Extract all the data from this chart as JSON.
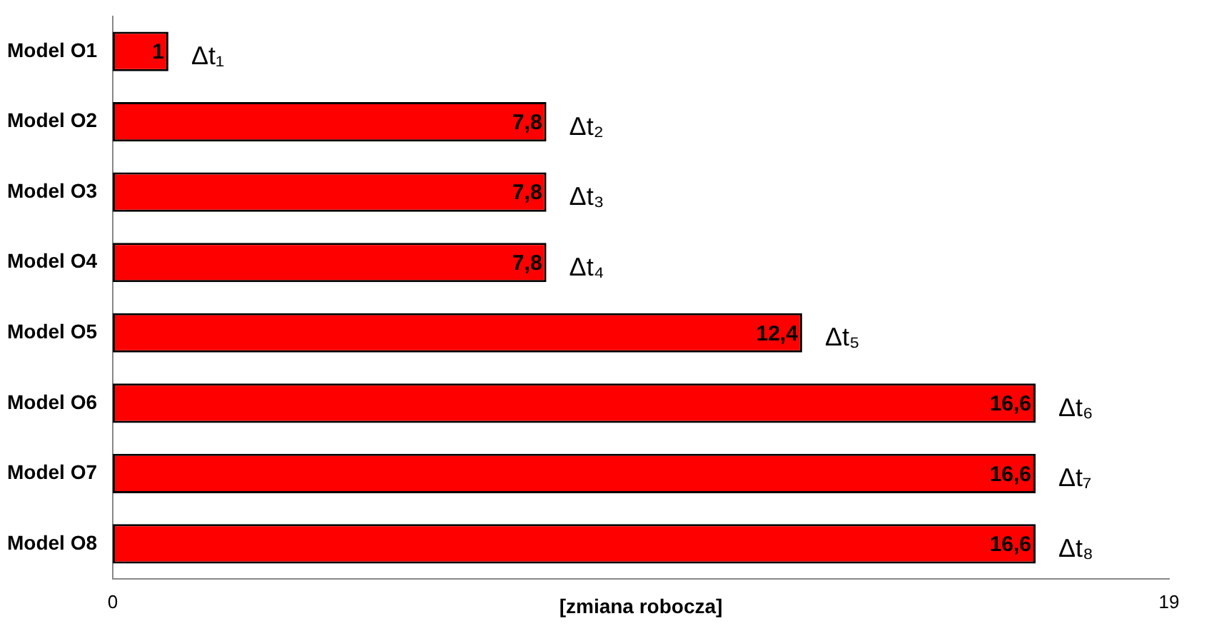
{
  "chart_data": {
    "type": "bar",
    "orientation": "horizontal",
    "xlabel": "[zmiana robocza]",
    "categories": [
      "Model O1",
      "Model O2",
      "Model O3",
      "Model O4",
      "Model O5",
      "Model O6",
      "Model O7",
      "Model O8"
    ],
    "values": [
      1,
      7.8,
      7.8,
      7.8,
      12.4,
      16.6,
      16.6,
      16.6
    ],
    "value_labels": [
      "1",
      "7,8",
      "7,8",
      "7,8",
      "12,4",
      "16,6",
      "16,6",
      "16,6"
    ],
    "color": "#ff0000",
    "xlim": [
      0,
      19
    ],
    "xticks": [
      0,
      19
    ],
    "grid": false,
    "legend": false,
    "annotations": [
      {
        "text": "Δt₁",
        "x": 1,
        "y": "Model O1"
      },
      {
        "text": "Δt₂",
        "x": 7.8,
        "y": "Model O2"
      },
      {
        "text": "Δt₃",
        "x": 7.8,
        "y": "Model O3"
      },
      {
        "text": "Δt₄",
        "x": 7.8,
        "y": "Model O4"
      },
      {
        "text": "Δt₅",
        "x": 12.4,
        "y": "Model O5"
      },
      {
        "text": "Δt₆",
        "x": 16.6,
        "y": "Model O6"
      },
      {
        "text": "Δt₇",
        "x": 16.6,
        "y": "Model O7"
      },
      {
        "text": "Δt₈",
        "x": 16.6,
        "y": "Model O8"
      }
    ]
  }
}
